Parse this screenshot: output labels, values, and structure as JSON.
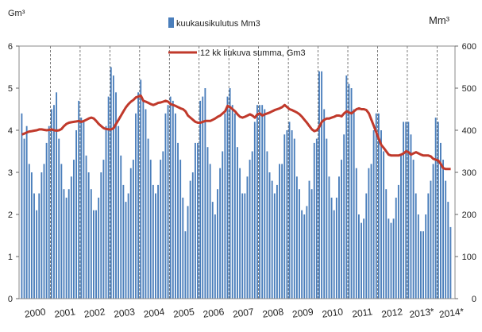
{
  "chart_data": {
    "type": "bar",
    "left_axis_unit": "Gm³",
    "right_axis_unit": "Mm³",
    "left_axis": {
      "min": 0,
      "max": 6,
      "ticks": [
        "0",
        "1",
        "2",
        "3",
        "4",
        "5",
        "6"
      ]
    },
    "right_axis": {
      "min": 0,
      "max": 600,
      "ticks": [
        "0",
        "100",
        "200",
        "300",
        "400",
        "500",
        "600"
      ]
    },
    "years": [
      "2000",
      "2001",
      "2002",
      "2003",
      "2004",
      "2005",
      "2006",
      "2007",
      "2008",
      "2009",
      "2010",
      "2011",
      "2012",
      "2013*",
      "2014*"
    ],
    "legend_position": "top-center",
    "grid": {
      "horizontal": false,
      "vertical_year_separators": true
    },
    "series": [
      {
        "name": "kuukausikulutus Mm3",
        "kind": "bar",
        "axis": "right",
        "color": "#4a7ebb",
        "values": [
          440,
          380,
          410,
          320,
          300,
          250,
          210,
          250,
          300,
          320,
          370,
          410,
          450,
          460,
          490,
          380,
          320,
          260,
          240,
          260,
          290,
          330,
          400,
          470,
          430,
          420,
          340,
          300,
          260,
          210,
          210,
          240,
          300,
          330,
          410,
          480,
          550,
          530,
          490,
          410,
          340,
          270,
          230,
          250,
          310,
          330,
          440,
          490,
          520,
          470,
          450,
          380,
          330,
          270,
          250,
          270,
          330,
          350,
          440,
          460,
          480,
          470,
          440,
          370,
          330,
          240,
          160,
          220,
          280,
          300,
          370,
          370,
          470,
          480,
          500,
          360,
          320,
          230,
          200,
          260,
          310,
          350,
          440,
          480,
          500,
          460,
          440,
          360,
          310,
          250,
          250,
          290,
          330,
          350,
          420,
          460,
          460,
          460,
          450,
          350,
          300,
          280,
          250,
          270,
          320,
          320,
          390,
          400,
          420,
          400,
          380,
          290,
          260,
          210,
          200,
          220,
          280,
          260,
          370,
          380,
          540,
          540,
          450,
          380,
          290,
          240,
          210,
          240,
          290,
          330,
          390,
          530,
          510,
          500,
          450,
          310,
          200,
          180,
          190,
          250,
          310,
          320,
          400,
          440,
          440,
          400,
          350,
          260,
          190,
          180,
          190,
          240,
          270,
          340,
          420,
          420,
          420,
          390,
          330,
          250,
          200,
          160,
          160,
          200,
          250,
          280,
          320,
          430,
          420,
          370,
          330,
          280,
          230,
          170
        ]
      },
      {
        "name": "12 kk liukuva summa,  Gm3",
        "kind": "line",
        "axis": "left",
        "color": "#c0392b",
        "values": [
          3.9,
          3.92,
          3.95,
          3.97,
          3.98,
          3.99,
          4.0,
          4.02,
          4.02,
          4.01,
          4.0,
          4.01,
          4.02,
          4.0,
          3.99,
          4.0,
          4.03,
          4.1,
          4.15,
          4.18,
          4.19,
          4.2,
          4.21,
          4.22,
          4.2,
          4.22,
          4.25,
          4.28,
          4.3,
          4.28,
          4.22,
          4.15,
          4.1,
          4.05,
          4.03,
          4.02,
          4.02,
          4.05,
          4.15,
          4.25,
          4.35,
          4.45,
          4.55,
          4.62,
          4.68,
          4.72,
          4.78,
          4.8,
          4.82,
          4.7,
          4.68,
          4.65,
          4.62,
          4.6,
          4.62,
          4.65,
          4.66,
          4.68,
          4.7,
          4.68,
          4.62,
          4.6,
          4.58,
          4.55,
          4.52,
          4.5,
          4.45,
          4.35,
          4.3,
          4.25,
          4.2,
          4.18,
          4.18,
          4.2,
          4.22,
          4.22,
          4.22,
          4.25,
          4.28,
          4.32,
          4.35,
          4.4,
          4.45,
          4.58,
          4.55,
          4.5,
          4.45,
          4.38,
          4.32,
          4.3,
          4.32,
          4.35,
          4.38,
          4.35,
          4.3,
          4.38,
          4.4,
          4.35,
          4.38,
          4.4,
          4.42,
          4.45,
          4.48,
          4.5,
          4.52,
          4.55,
          4.6,
          4.55,
          4.5,
          4.48,
          4.45,
          4.42,
          4.38,
          4.32,
          4.25,
          4.18,
          4.1,
          4.02,
          3.98,
          4.0,
          4.08,
          4.2,
          4.25,
          4.28,
          4.28,
          4.3,
          4.32,
          4.35,
          4.35,
          4.33,
          4.4,
          4.45,
          4.42,
          4.4,
          4.45,
          4.5,
          4.52,
          4.5,
          4.5,
          4.48,
          4.4,
          4.25,
          4.1,
          3.95,
          3.8,
          3.65,
          3.58,
          3.5,
          3.42,
          3.4,
          3.4,
          3.4,
          3.4,
          3.42,
          3.45,
          3.5,
          3.48,
          3.42,
          3.45,
          3.48,
          3.45,
          3.42,
          3.4,
          3.4,
          3.4,
          3.38,
          3.32,
          3.3,
          3.28,
          3.2,
          3.1,
          3.08,
          3.08,
          3.08
        ]
      }
    ]
  }
}
